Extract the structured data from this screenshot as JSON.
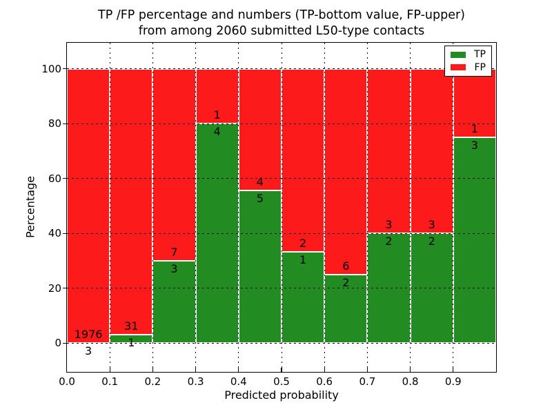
{
  "title": {
    "line1": "TP /FP percentage and numbers (TP-bottom value, FP-upper)",
    "line2": "from among 2060 submitted L50-type contacts"
  },
  "axes": {
    "ylabel": "Percentage",
    "xlabel": "Predicted probability",
    "ytick_labels": [
      "0",
      "20",
      "40",
      "60",
      "80",
      "100"
    ],
    "ytick_values": [
      0,
      20,
      40,
      60,
      80,
      100
    ],
    "xtick_labels": [
      "0.0",
      "0.1",
      "0.2",
      "0.3",
      "0.4",
      "0.5",
      "0.6",
      "0.7",
      "0.8",
      "0.9"
    ],
    "xtick_values": [
      0.0,
      0.1,
      0.2,
      0.3,
      0.4,
      0.5,
      0.6,
      0.7,
      0.8,
      0.9
    ]
  },
  "legend": {
    "entries": [
      {
        "label": "TP",
        "color": "#228b22"
      },
      {
        "label": "FP",
        "color": "#fc1a1a"
      }
    ]
  },
  "chart_data": {
    "type": "bar",
    "subtype": "stacked-percentage",
    "title": "TP /FP percentage and numbers (TP-bottom value, FP-upper) from among 2060 submitted L50-type contacts",
    "xlabel": "Predicted probability",
    "ylabel": "Percentage",
    "bin_width": 0.1,
    "categories": [
      "0.0-0.1",
      "0.1-0.2",
      "0.2-0.3",
      "0.3-0.4",
      "0.4-0.5",
      "0.5-0.6",
      "0.6-0.7",
      "0.7-0.8",
      "0.8-0.9",
      "0.9-1.0"
    ],
    "series": [
      {
        "name": "TP",
        "color": "#228b22",
        "counts": [
          3,
          1,
          3,
          4,
          5,
          1,
          2,
          2,
          2,
          3
        ]
      },
      {
        "name": "FP",
        "color": "#fc1a1a",
        "counts": [
          1976,
          31,
          7,
          1,
          4,
          2,
          6,
          3,
          3,
          1
        ]
      }
    ],
    "tp_percent_approx": [
      0.15,
      3.13,
      30,
      80,
      55.56,
      33.33,
      25,
      40,
      40,
      75
    ],
    "total_contacts": 2060,
    "xlim": [
      0.0,
      1.0
    ],
    "ylim": [
      -10.5,
      109.5
    ],
    "grid": true,
    "legend_position": "upper right"
  }
}
